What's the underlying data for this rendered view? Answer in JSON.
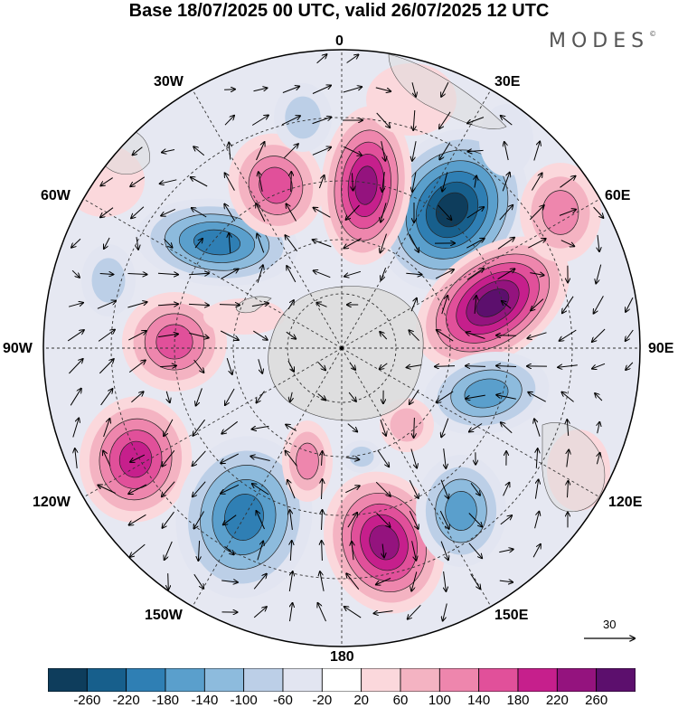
{
  "header": {
    "title": "Base 18/07/2025 00 UTC, valid 26/07/2025 12 UTC",
    "brand": "MODES",
    "brand_mark": "©"
  },
  "map": {
    "projection": "south-polar-stereographic",
    "longitude_labels": {
      "top": "0",
      "upper_left": "30W",
      "upper_right": "30E",
      "left_upper": "60W",
      "right_upper": "60E",
      "left": "90W",
      "right": "90E",
      "left_lower": "120W",
      "right_lower": "120E",
      "lower_left": "150W",
      "lower_right": "150E",
      "bottom": "180"
    },
    "reference_vector": {
      "value": "30"
    },
    "colors": {
      "negative": [
        "#0e3d5c",
        "#175f8c",
        "#2f7fb4",
        "#5a9fcc",
        "#8dbbdd",
        "#bccfe7",
        "#e2e5f1"
      ],
      "positive": [
        "#fbd8dc",
        "#f4b3c2",
        "#ee86ad",
        "#e1509a",
        "#c61f8c",
        "#94137e",
        "#5c0f6d"
      ],
      "land": "#dcdcdc"
    }
  },
  "colorbar": {
    "labels": [
      "-260",
      "-220",
      "-180",
      "-140",
      "-100",
      "-60",
      "-20",
      "20",
      "60",
      "100",
      "140",
      "180",
      "220",
      "260"
    ],
    "colors": [
      "#0e3d5c",
      "#175f8c",
      "#2f7fb4",
      "#5a9fcc",
      "#8dbbdd",
      "#bccfe7",
      "#e2e5f1",
      "#ffffff",
      "#fbd8dc",
      "#f4b3c2",
      "#ee86ad",
      "#e1509a",
      "#c61f8c",
      "#94137e",
      "#5c0f6d"
    ]
  }
}
